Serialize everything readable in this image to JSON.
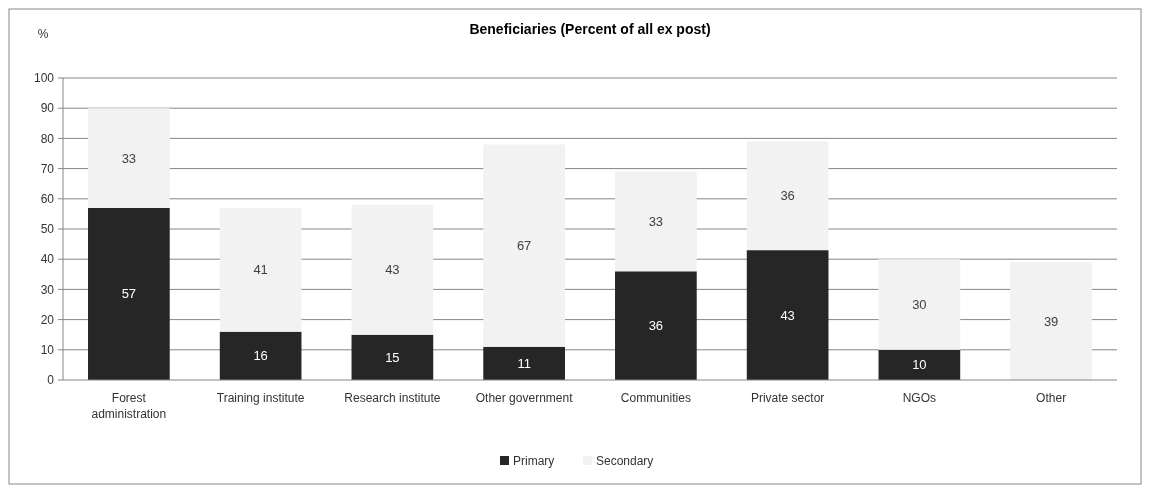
{
  "chart_data": {
    "type": "bar",
    "title": "Beneficiaries (Percent of all ex post)",
    "ylabel": "%",
    "categories": [
      "Forest administration",
      "Training institute",
      "Research institute",
      "Other government",
      "Communities",
      "Private sector",
      "NGOs",
      "Other"
    ],
    "series": [
      {
        "name": "Primary",
        "color": "#262626",
        "values": [
          57,
          16,
          15,
          11,
          36,
          43,
          10,
          null
        ]
      },
      {
        "name": "Secondary",
        "color": "#f2f2f2",
        "values": [
          33,
          41,
          43,
          67,
          33,
          36,
          30,
          39
        ]
      }
    ],
    "stacked": true,
    "data_labels": true,
    "ylim": [
      0,
      100
    ],
    "yticks": [
      0,
      10,
      20,
      30,
      40,
      50,
      60,
      70,
      80,
      90,
      100
    ],
    "grid": "y",
    "legend": "bottom"
  }
}
